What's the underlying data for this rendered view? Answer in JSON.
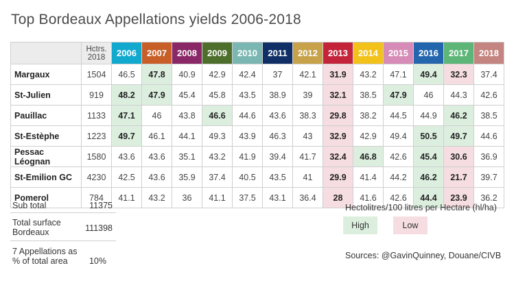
{
  "title": "Top Bordeaux Appellations yields 2006-2018",
  "header": {
    "hctrs_line1": "Hctrs.",
    "hctrs_line2": "2018",
    "years": [
      {
        "label": "2006",
        "color": "#12a9cf"
      },
      {
        "label": "2007",
        "color": "#c85f28"
      },
      {
        "label": "2008",
        "color": "#8a2766"
      },
      {
        "label": "2009",
        "color": "#4e6e2c"
      },
      {
        "label": "2010",
        "color": "#7bb7b2"
      },
      {
        "label": "2011",
        "color": "#0f2f66"
      },
      {
        "label": "2012",
        "color": "#c7a24a"
      },
      {
        "label": "2013",
        "color": "#c4243a"
      },
      {
        "label": "2014",
        "color": "#f2c21b"
      },
      {
        "label": "2015",
        "color": "#d68cb6"
      },
      {
        "label": "2016",
        "color": "#2466ad"
      },
      {
        "label": "2017",
        "color": "#5db577"
      },
      {
        "label": "2018",
        "color": "#c48480"
      }
    ]
  },
  "rows": [
    {
      "name": "Margaux",
      "hectares": "1504",
      "values": [
        "46.5",
        "47.8",
        "40.9",
        "42.9",
        "42.4",
        "37",
        "42.1",
        "31.9",
        "43.2",
        "47.1",
        "49.4",
        "32.3",
        "37.4"
      ],
      "status": [
        "",
        "high",
        "",
        "",
        "",
        "",
        "",
        "low",
        "",
        "",
        "high",
        "low",
        ""
      ]
    },
    {
      "name": "St-Julien",
      "hectares": "919",
      "values": [
        "48.2",
        "47.9",
        "45.4",
        "45.8",
        "43.5",
        "38.9",
        "39",
        "32.1",
        "38.5",
        "47.9",
        "46",
        "44.3",
        "42.6"
      ],
      "status": [
        "high",
        "high",
        "",
        "",
        "",
        "",
        "",
        "low",
        "",
        "high",
        "",
        "",
        ""
      ]
    },
    {
      "name": "Pauillac",
      "hectares": "1133",
      "values": [
        "47.1",
        "46",
        "43.8",
        "46.6",
        "44.6",
        "43.6",
        "38.3",
        "29.8",
        "38.2",
        "44.5",
        "44.9",
        "46.2",
        "38.5"
      ],
      "status": [
        "high",
        "",
        "",
        "high",
        "",
        "",
        "",
        "low",
        "",
        "",
        "",
        "high",
        ""
      ]
    },
    {
      "name": "St-Estèphe",
      "hectares": "1223",
      "values": [
        "49.7",
        "46.1",
        "44.1",
        "49.3",
        "43.9",
        "46.3",
        "43",
        "32.9",
        "42.9",
        "49.4",
        "50.5",
        "49.7",
        "44.6"
      ],
      "status": [
        "high",
        "",
        "",
        "",
        "",
        "",
        "",
        "low",
        "",
        "",
        "high",
        "high",
        ""
      ]
    },
    {
      "name": "Pessac Léognan",
      "hectares": "1580",
      "values": [
        "43.6",
        "43.6",
        "35.1",
        "43.2",
        "41.9",
        "39.4",
        "41.7",
        "32.4",
        "46.8",
        "42.6",
        "45.4",
        "30.6",
        "36.9"
      ],
      "status": [
        "",
        "",
        "",
        "",
        "",
        "",
        "",
        "low",
        "high",
        "",
        "high",
        "low",
        ""
      ]
    },
    {
      "name": "St-Emilion GC",
      "hectares": "4230",
      "values": [
        "42.5",
        "43.6",
        "35.9",
        "37.4",
        "40.5",
        "43.5",
        "41",
        "29.9",
        "41.4",
        "44.2",
        "46.2",
        "21.7",
        "39.7"
      ],
      "status": [
        "",
        "",
        "",
        "",
        "",
        "",
        "",
        "low",
        "",
        "",
        "high",
        "low",
        ""
      ]
    },
    {
      "name": "Pomerol",
      "hectares": "784",
      "values": [
        "41.1",
        "43.2",
        "36",
        "41.1",
        "37.5",
        "43.1",
        "36.4",
        "28",
        "41.6",
        "42.6",
        "44.4",
        "23.9",
        "36.2"
      ],
      "status": [
        "",
        "",
        "",
        "",
        "",
        "",
        "",
        "low",
        "",
        "",
        "high",
        "low",
        ""
      ]
    }
  ],
  "summary": {
    "subtotal_label": "Sub total",
    "subtotal_value": "11375",
    "total_label_1": "Total surface",
    "total_label_2": "Bordeaux",
    "total_value": "111398",
    "pct_label_1": "7 Appellations as",
    "pct_label_2": "% of total area",
    "pct_value": "10%"
  },
  "legend": {
    "title": "Hectolitres/100 litres per Hectare (hl/ha)",
    "high": "High",
    "low": "Low"
  },
  "sources": "Sources: @GavinQuinney, Douane/CIVB"
}
